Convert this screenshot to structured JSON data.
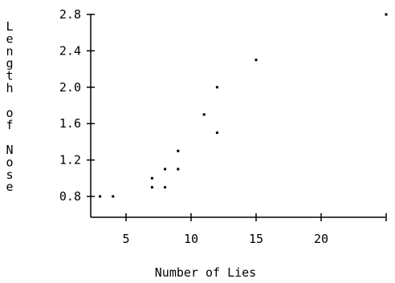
{
  "chart_data": {
    "type": "scatter",
    "title": "",
    "xlabel": "Number of Lies",
    "ylabel": "Length of Nose",
    "xlim": [
      2.5,
      25
    ],
    "ylim": [
      0.7,
      2.8
    ],
    "x_ticks": [
      {
        "value": 5,
        "label": "5"
      },
      {
        "value": 10,
        "label": "10"
      },
      {
        "value": 15,
        "label": "15"
      },
      {
        "value": 20,
        "label": "20"
      },
      {
        "value": 25,
        "label": ""
      }
    ],
    "y_ticks": [
      {
        "value": 0.8,
        "label": "0.8"
      },
      {
        "value": 1.2,
        "label": "1.2"
      },
      {
        "value": 1.6,
        "label": "1.6"
      },
      {
        "value": 2.0,
        "label": "2.0"
      },
      {
        "value": 2.4,
        "label": "2.4"
      },
      {
        "value": 2.8,
        "label": "2.8"
      }
    ],
    "grid": false,
    "legend": "none",
    "series": [
      {
        "x": [
          3,
          4,
          7,
          7,
          8,
          8,
          9,
          9,
          11,
          12,
          12,
          15,
          25
        ],
        "y": [
          0.8,
          0.8,
          0.9,
          1.0,
          0.9,
          1.1,
          1.1,
          1.3,
          1.7,
          1.5,
          2.0,
          2.3,
          2.8
        ]
      }
    ]
  }
}
